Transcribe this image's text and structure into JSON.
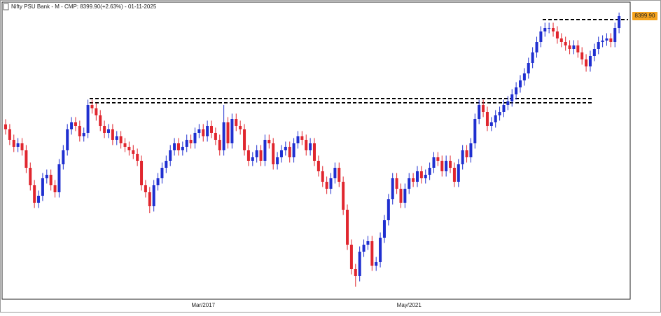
{
  "chart_data": {
    "type": "candlestick",
    "title": "Nifty PSU Bank - M - CMP: 8399.90(+2.63%) - 01-11-2025",
    "categories": [
      null,
      null,
      null,
      null,
      null,
      null,
      null,
      null,
      null,
      null,
      null,
      null,
      null,
      null,
      null,
      null,
      null,
      null,
      null,
      null,
      null,
      null,
      null,
      null,
      null,
      null,
      null,
      null,
      null,
      null,
      null,
      null,
      null,
      null,
      null,
      null,
      null,
      null,
      null,
      null,
      null,
      null,
      null,
      null,
      null,
      null,
      null,
      null,
      "Mar/2017",
      null,
      null,
      null,
      null,
      null,
      null,
      null,
      null,
      null,
      null,
      null,
      null,
      null,
      null,
      null,
      null,
      null,
      null,
      null,
      null,
      null,
      null,
      null,
      null,
      null,
      null,
      null,
      null,
      null,
      null,
      null,
      null,
      null,
      null,
      null,
      null,
      null,
      null,
      null,
      null,
      null,
      null,
      null,
      null,
      null,
      null,
      null,
      null,
      null,
      "May/2021",
      null,
      null,
      null,
      null,
      null,
      null,
      null,
      null,
      null,
      null,
      null,
      null,
      null,
      null,
      null,
      null,
      null,
      null,
      null,
      null,
      null,
      null,
      null,
      null,
      null,
      null,
      null,
      null,
      null,
      null,
      null,
      null,
      null,
      null,
      null,
      null,
      null,
      null,
      null,
      null,
      null,
      null,
      null,
      null,
      null,
      null,
      null,
      null,
      null,
      null,
      null
    ],
    "open": [
      5300,
      5160,
      4860,
      4660,
      4760,
      4560,
      4060,
      3560,
      3060,
      3260,
      3760,
      3860,
      3560,
      3360,
      4160,
      4560,
      5160,
      5360,
      5260,
      4960,
      5060,
      5860,
      5760,
      5560,
      5260,
      5060,
      5160,
      4860,
      4960,
      4760,
      4660,
      4560,
      4460,
      4260,
      3560,
      3360,
      2960,
      3560,
      3760,
      4060,
      4260,
      4560,
      4760,
      4560,
      4660,
      4860,
      4760,
      5060,
      5160,
      4960,
      5260,
      5060,
      4860,
      4560,
      5360,
      4760,
      5460,
      5260,
      5160,
      4560,
      4260,
      4360,
      4560,
      4260,
      4860,
      4760,
      4160,
      4360,
      4560,
      4660,
      4360,
      4760,
      4960,
      4860,
      4560,
      4760,
      4260,
      3960,
      3660,
      3460,
      3760,
      4060,
      3660,
      2860,
      1860,
      1160,
      960,
      1660,
      1860,
      1960,
      1260,
      1360,
      2060,
      2560,
      3160,
      3760,
      3460,
      3060,
      3460,
      3760,
      3660,
      3960,
      3760,
      3860,
      4060,
      4360,
      4260,
      3960,
      4260,
      4060,
      3660,
      4160,
      4560,
      4360,
      4760,
      5460,
      5860,
      5660,
      5260,
      5360,
      5560,
      5660,
      5860,
      5960,
      6160,
      6360,
      6560,
      6760,
      7060,
      7360,
      7660,
      7960,
      8060,
      8060,
      7960,
      7760,
      7660,
      7560,
      7460,
      7560,
      7360,
      7160,
      6960,
      7260,
      7460,
      7660,
      7700,
      7760,
      7660,
      8060
    ],
    "high": [
      5450,
      5310,
      5010,
      4910,
      4910,
      4710,
      4210,
      3710,
      3410,
      3910,
      4010,
      4010,
      3710,
      4310,
      4710,
      5310,
      5510,
      5510,
      5410,
      5210,
      6010,
      6010,
      5910,
      5710,
      5410,
      5310,
      5310,
      5110,
      5110,
      4910,
      4810,
      4710,
      4610,
      4410,
      3710,
      3510,
      3710,
      3910,
      4210,
      4410,
      4710,
      4910,
      4910,
      4810,
      5010,
      5010,
      5210,
      5310,
      5310,
      5410,
      5410,
      5210,
      5010,
      5860,
      5510,
      5610,
      5610,
      5410,
      5310,
      4710,
      4510,
      4710,
      4710,
      5010,
      5010,
      4910,
      4510,
      4710,
      4810,
      4810,
      4910,
      5110,
      5110,
      5010,
      4910,
      4910,
      4410,
      4110,
      3810,
      3910,
      4210,
      4210,
      3810,
      3010,
      2010,
      1310,
      1810,
      2010,
      2110,
      2110,
      1510,
      2210,
      2710,
      3310,
      3910,
      3910,
      3610,
      3610,
      3910,
      3910,
      4110,
      4110,
      4010,
      4210,
      4510,
      4510,
      4410,
      4410,
      4410,
      4210,
      4310,
      4710,
      4710,
      4910,
      5610,
      6010,
      6010,
      5810,
      5510,
      5710,
      5810,
      6010,
      6110,
      6310,
      6510,
      6710,
      6910,
      7210,
      7510,
      7810,
      8110,
      8210,
      8210,
      8210,
      8110,
      7910,
      7810,
      7710,
      7710,
      7710,
      7510,
      7310,
      7410,
      7610,
      7810,
      7850,
      7910,
      7910,
      8210,
      8500
    ],
    "low": [
      5010,
      4710,
      4510,
      4510,
      4410,
      3910,
      3410,
      2910,
      2910,
      3110,
      3610,
      3410,
      3210,
      3210,
      4010,
      4410,
      5010,
      5110,
      4810,
      4810,
      4910,
      5610,
      5410,
      5110,
      4910,
      4910,
      4710,
      4710,
      4610,
      4510,
      4410,
      4310,
      4110,
      3410,
      3210,
      2760,
      2810,
      3410,
      3610,
      3910,
      4110,
      4410,
      4410,
      4410,
      4510,
      4610,
      4610,
      4910,
      4810,
      4810,
      4910,
      4710,
      4410,
      4410,
      4610,
      4610,
      5110,
      5010,
      4410,
      4110,
      4110,
      4210,
      4110,
      4110,
      4610,
      4010,
      4010,
      4210,
      4410,
      4210,
      4210,
      4610,
      4710,
      4410,
      4410,
      4110,
      3810,
      3510,
      3310,
      3310,
      3610,
      3510,
      2710,
      1710,
      1010,
      660,
      810,
      1510,
      1710,
      1110,
      1110,
      1210,
      1910,
      2410,
      3010,
      3310,
      2910,
      2910,
      3310,
      3510,
      3510,
      3610,
      3610,
      3710,
      3910,
      4110,
      3810,
      3810,
      3910,
      3510,
      3510,
      4010,
      4210,
      4210,
      4610,
      5310,
      5510,
      5110,
      5110,
      5210,
      5410,
      5510,
      5710,
      5810,
      6010,
      6210,
      6410,
      6610,
      6910,
      7210,
      7510,
      7810,
      7910,
      7810,
      7610,
      7510,
      7410,
      7310,
      7310,
      7210,
      7010,
      6810,
      6810,
      7110,
      7310,
      7510,
      7550,
      7510,
      7510,
      7910
    ],
    "close": [
      5160,
      4860,
      4660,
      4760,
      4560,
      4060,
      3560,
      3060,
      3260,
      3760,
      3860,
      3560,
      3360,
      4160,
      4560,
      5160,
      5360,
      5260,
      4960,
      5060,
      5860,
      5760,
      5560,
      5260,
      5060,
      5160,
      4860,
      4960,
      4760,
      4660,
      4560,
      4460,
      4260,
      3560,
      3360,
      2960,
      3560,
      3760,
      4060,
      4260,
      4560,
      4760,
      4560,
      4660,
      4860,
      4760,
      5060,
      5160,
      4960,
      5260,
      5060,
      4860,
      4560,
      5360,
      4760,
      5460,
      5260,
      5160,
      4560,
      4260,
      4360,
      4560,
      4260,
      4860,
      4760,
      4160,
      4360,
      4560,
      4660,
      4360,
      4760,
      4960,
      4860,
      4560,
      4760,
      4260,
      3960,
      3660,
      3460,
      3760,
      4060,
      3660,
      2860,
      1860,
      1160,
      960,
      1660,
      1860,
      1960,
      1260,
      1360,
      2060,
      2560,
      3160,
      3760,
      3460,
      3060,
      3460,
      3760,
      3660,
      3960,
      3760,
      3860,
      4060,
      4360,
      4260,
      3960,
      4260,
      4060,
      3660,
      4160,
      4560,
      4360,
      4760,
      5460,
      5860,
      5660,
      5260,
      5360,
      5560,
      5660,
      5860,
      5960,
      6160,
      6360,
      6560,
      6760,
      7060,
      7360,
      7660,
      7960,
      8060,
      8060,
      7960,
      7760,
      7660,
      7560,
      7460,
      7560,
      7360,
      7160,
      6960,
      7260,
      7460,
      7660,
      7700,
      7760,
      7660,
      8060,
      8399.9
    ],
    "up_color": "#1f2fd0",
    "down_color": "#e0262e",
    "ylim": [
      360,
      8760
    ],
    "hlines": [
      8300,
      6040,
      5920
    ],
    "last_label": "8399.90"
  }
}
